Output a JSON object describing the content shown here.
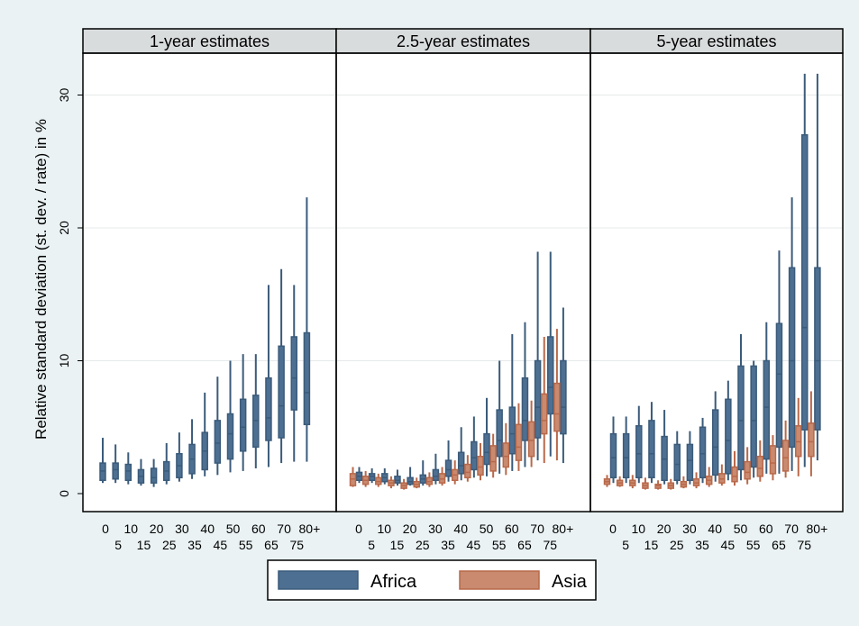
{
  "chart_data": {
    "type": "box",
    "ylabel": "Relative standard deviation (st. dev. / rate) in %",
    "ylim": [
      0,
      33
    ],
    "yticks": [
      0,
      10,
      20,
      30
    ],
    "ytick_labels": [
      "0",
      "10",
      "20",
      "30"
    ],
    "grid": true,
    "legend_position": "bottom",
    "age_groups": [
      "0",
      "5",
      "10",
      "15",
      "20",
      "25",
      "30",
      "35",
      "40",
      "45",
      "50",
      "55",
      "60",
      "65",
      "70",
      "75",
      "80+"
    ],
    "xtick_top": [
      "0",
      "10",
      "20",
      "30",
      "40",
      "50",
      "60",
      "70",
      "80+"
    ],
    "xtick_bottom": [
      "5",
      "15",
      "25",
      "35",
      "45",
      "55",
      "65",
      "75"
    ],
    "series_styles": [
      {
        "name": "Africa",
        "color": "#3b5b7a",
        "fill": "#4d6f91"
      },
      {
        "name": "Asia",
        "color": "#b9694a",
        "fill": "#c98a6f"
      }
    ],
    "panels": [
      {
        "title": "1-year estimates",
        "series": [
          {
            "name": "Africa",
            "boxes": [
              [
                0.8,
                1.0,
                1.7,
                2.3,
                4.2
              ],
              [
                0.8,
                1.1,
                1.8,
                2.3,
                3.7
              ],
              [
                0.7,
                1.0,
                1.7,
                2.2,
                3.1
              ],
              [
                0.6,
                0.8,
                1.3,
                1.8,
                2.6
              ],
              [
                0.5,
                0.8,
                1.2,
                1.9,
                2.6
              ],
              [
                0.7,
                1.0,
                1.7,
                2.4,
                3.8
              ],
              [
                0.9,
                1.2,
                2.1,
                3.0,
                4.6
              ],
              [
                1.1,
                1.5,
                2.6,
                3.7,
                5.6
              ],
              [
                1.3,
                1.8,
                3.2,
                4.6,
                7.6
              ],
              [
                1.4,
                2.3,
                3.8,
                5.5,
                8.8
              ],
              [
                1.6,
                2.6,
                4.5,
                6.0,
                10.0
              ],
              [
                1.7,
                3.2,
                5.0,
                7.1,
                10.5
              ],
              [
                1.9,
                3.5,
                5.5,
                7.4,
                10.5
              ],
              [
                2.0,
                4.0,
                5.7,
                8.7,
                15.7
              ],
              [
                2.3,
                4.2,
                6.6,
                11.1,
                16.9
              ],
              [
                2.4,
                6.3,
                8.7,
                11.8,
                15.7
              ],
              [
                2.4,
                5.2,
                7.6,
                12.1,
                22.3
              ]
            ]
          },
          {
            "name": "Asia",
            "boxes": []
          }
        ]
      },
      {
        "title": "2.5-year estimates",
        "series": [
          {
            "name": "Africa",
            "boxes": [
              [
                0.8,
                1.0,
                1.3,
                1.6,
                2.0
              ],
              [
                0.8,
                1.0,
                1.3,
                1.5,
                1.9
              ],
              [
                0.7,
                0.9,
                1.2,
                1.5,
                1.9
              ],
              [
                0.6,
                0.8,
                1.0,
                1.3,
                1.8
              ],
              [
                0.6,
                0.7,
                0.9,
                1.2,
                2.0
              ],
              [
                0.6,
                0.8,
                1.1,
                1.4,
                2.5
              ],
              [
                0.7,
                1.0,
                1.3,
                1.8,
                3.0
              ],
              [
                0.9,
                1.3,
                1.8,
                2.5,
                4.0
              ],
              [
                1.0,
                1.5,
                2.1,
                3.1,
                5.0
              ],
              [
                1.2,
                1.8,
                2.7,
                3.9,
                5.8
              ],
              [
                1.3,
                2.2,
                3.1,
                4.5,
                7.2
              ],
              [
                1.5,
                2.8,
                4.0,
                6.3,
                10.0
              ],
              [
                1.7,
                3.0,
                4.5,
                6.5,
                12.0
              ],
              [
                2.0,
                4.0,
                5.5,
                8.7,
                12.9
              ],
              [
                2.5,
                4.2,
                6.5,
                10.0,
                18.2
              ],
              [
                2.8,
                6.0,
                8.0,
                11.8,
                18.2
              ],
              [
                2.3,
                4.5,
                6.5,
                10.0,
                14.0
              ]
            ]
          },
          {
            "name": "Asia",
            "boxes": [
              [
                0.5,
                0.6,
                1.1,
                1.5,
                2.0
              ],
              [
                0.5,
                0.7,
                1.0,
                1.3,
                1.7
              ],
              [
                0.5,
                0.7,
                0.9,
                1.2,
                1.5
              ],
              [
                0.4,
                0.6,
                0.8,
                1.0,
                1.3
              ],
              [
                0.3,
                0.4,
                0.6,
                0.8,
                1.1
              ],
              [
                0.4,
                0.5,
                0.7,
                0.9,
                1.2
              ],
              [
                0.5,
                0.7,
                0.9,
                1.2,
                1.6
              ],
              [
                0.6,
                0.8,
                1.1,
                1.5,
                2.0
              ],
              [
                0.7,
                1.0,
                1.4,
                1.8,
                2.5
              ],
              [
                0.9,
                1.2,
                1.6,
                2.2,
                2.9
              ],
              [
                1.0,
                1.4,
                2.0,
                2.8,
                3.8
              ],
              [
                1.2,
                1.7,
                2.4,
                3.6,
                4.5
              ],
              [
                1.4,
                2.0,
                2.8,
                3.8,
                5.3
              ],
              [
                1.7,
                2.5,
                3.5,
                5.2,
                6.8
              ],
              [
                2.0,
                2.8,
                4.0,
                5.4,
                7.0
              ],
              [
                2.3,
                4.5,
                5.5,
                7.5,
                11.8
              ],
              [
                2.5,
                4.7,
                6.0,
                8.3,
                12.4
              ]
            ]
          }
        ]
      },
      {
        "title": "5-year estimates",
        "series": [
          {
            "name": "Africa",
            "boxes": [
              [
                0.8,
                1.2,
                2.7,
                4.5,
                5.8
              ],
              [
                0.8,
                1.2,
                2.7,
                4.5,
                5.8
              ],
              [
                0.8,
                1.2,
                3.0,
                5.1,
                6.6
              ],
              [
                0.8,
                1.2,
                3.0,
                5.5,
                6.9
              ],
              [
                0.7,
                1.0,
                2.6,
                4.3,
                6.3
              ],
              [
                0.7,
                1.0,
                2.2,
                3.7,
                4.7
              ],
              [
                0.7,
                1.0,
                2.5,
                3.7,
                4.7
              ],
              [
                0.8,
                1.2,
                3.0,
                5.0,
                5.7
              ],
              [
                0.9,
                1.4,
                3.5,
                6.3,
                7.7
              ],
              [
                1.0,
                1.5,
                4.0,
                7.1,
                8.5
              ],
              [
                1.0,
                1.8,
                5.5,
                9.6,
                12.0
              ],
              [
                1.2,
                2.0,
                5.5,
                9.6,
                10.0
              ],
              [
                1.5,
                2.6,
                6.5,
                10.0,
                12.9
              ],
              [
                1.5,
                3.5,
                9.0,
                12.8,
                18.3
              ],
              [
                1.7,
                3.5,
                10.0,
                17.0,
                22.3
              ],
              [
                2.0,
                4.8,
                12.5,
                27.0,
                31.6
              ],
              [
                2.5,
                4.8,
                10.0,
                17.0,
                31.6
              ]
            ]
          },
          {
            "name": "Asia",
            "boxes": [
              [
                0.5,
                0.7,
                0.9,
                1.1,
                1.4
              ],
              [
                0.5,
                0.6,
                0.8,
                1.0,
                1.3
              ],
              [
                0.4,
                0.6,
                0.8,
                1.0,
                1.4
              ],
              [
                0.3,
                0.4,
                0.6,
                0.8,
                1.2
              ],
              [
                0.3,
                0.4,
                0.6,
                0.7,
                1.0
              ],
              [
                0.3,
                0.4,
                0.6,
                0.8,
                1.1
              ],
              [
                0.4,
                0.5,
                0.7,
                0.9,
                1.3
              ],
              [
                0.4,
                0.6,
                0.8,
                1.1,
                1.6
              ],
              [
                0.5,
                0.7,
                1.0,
                1.3,
                2.0
              ],
              [
                0.6,
                0.8,
                1.1,
                1.5,
                2.2
              ],
              [
                0.6,
                0.9,
                1.3,
                2.0,
                3.2
              ],
              [
                0.7,
                1.1,
                1.6,
                2.4,
                3.5
              ],
              [
                0.9,
                1.3,
                1.9,
                2.8,
                4.0
              ],
              [
                1.0,
                1.5,
                2.3,
                3.6,
                4.4
              ],
              [
                1.2,
                1.7,
                2.7,
                4.0,
                5.5
              ],
              [
                1.3,
                2.8,
                3.9,
                5.1,
                7.2
              ],
              [
                1.3,
                2.8,
                3.9,
                5.3,
                7.7
              ]
            ]
          }
        ]
      }
    ]
  }
}
